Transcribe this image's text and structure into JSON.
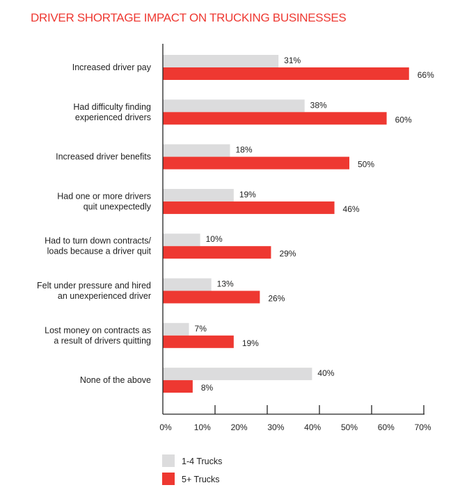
{
  "chart_data": {
    "type": "bar",
    "orientation": "horizontal",
    "title": "DRIVER SHORTAGE IMPACT ON TRUCKING BUSINESSES",
    "categories": [
      [
        "Increased driver pay"
      ],
      [
        "Had difficulty finding",
        "experienced drivers"
      ],
      [
        "Increased driver benefits"
      ],
      [
        "Had one or more drivers",
        "quit unexpectedly"
      ],
      [
        "Had to turn down contracts/",
        "loads because a driver quit"
      ],
      [
        "Felt under pressure and hired",
        "an unexperienced driver"
      ],
      [
        "Lost money on contracts as",
        "a result of drivers quitting"
      ],
      [
        "None of the above"
      ]
    ],
    "series": [
      {
        "name": "1-4 Trucks",
        "color": "#dcdcdd",
        "values": [
          31,
          38,
          18,
          19,
          10,
          13,
          7,
          40
        ]
      },
      {
        "name": "5+ Trucks",
        "color": "#ee3831",
        "values": [
          66,
          60,
          50,
          46,
          29,
          26,
          19,
          8
        ]
      }
    ],
    "xlim": [
      0,
      70
    ],
    "xticks": [
      "0%",
      "10%",
      "20%",
      "30%",
      "40%",
      "50%",
      "60%",
      "70%"
    ],
    "value_suffix": "%",
    "legend": "bottom-left",
    "grid": false
  }
}
